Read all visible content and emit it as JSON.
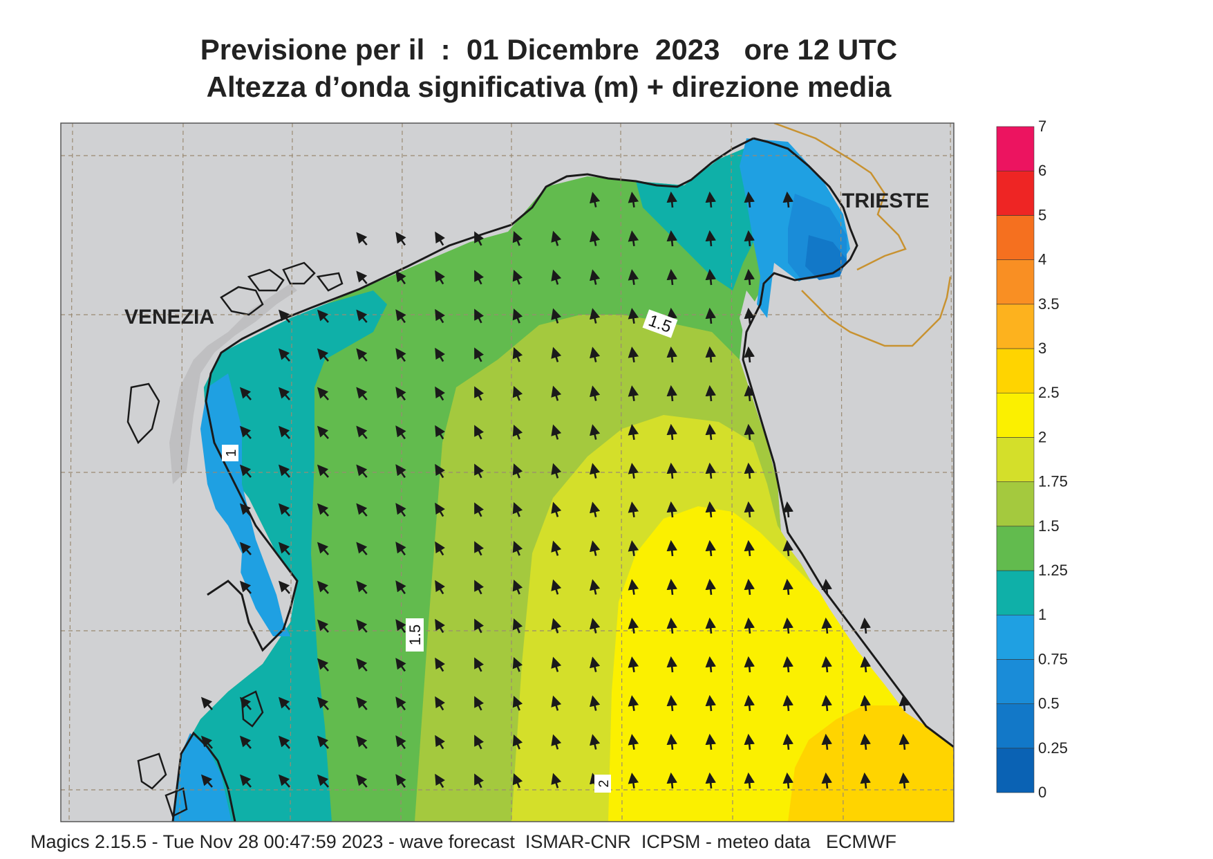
{
  "title": {
    "line1": "Previsione per il  :  01 Dicembre  2023   ore 12 UTC",
    "line2": "Altezza d’onda significativa (m) + direzione media"
  },
  "places": {
    "venezia": "VENEZIA",
    "trieste": "TRIESTE"
  },
  "contour_labels": [
    "1",
    "1.5",
    "1.5",
    "2"
  ],
  "colorbar": {
    "levels": [
      "0",
      "0.25",
      "0.5",
      "0.75",
      "1",
      "1.25",
      "1.5",
      "1.75",
      "2",
      "2.5",
      "3",
      "3.5",
      "4",
      "5",
      "6",
      "7"
    ],
    "colors": [
      "#0a62b4",
      "#1278c8",
      "#1a8cd8",
      "#1fa0e2",
      "#0fb0a8",
      "#62bb4e",
      "#a4c93e",
      "#d4df2a",
      "#fbf000",
      "#ffd400",
      "#fdb21e",
      "#f98f23",
      "#f5701f",
      "#ee2524",
      "#ec1460"
    ]
  },
  "colors": {
    "land": "#d0d1d3",
    "coast": "#1a1a1a",
    "grid": "#9a8a72",
    "border": "#c89230"
  },
  "footer": "Magics 2.15.5 - Tue Nov 28 00:47:59 2023 - wave forecast  ISMAR-CNR  ICPSM - meteo data   ECMWF"
}
